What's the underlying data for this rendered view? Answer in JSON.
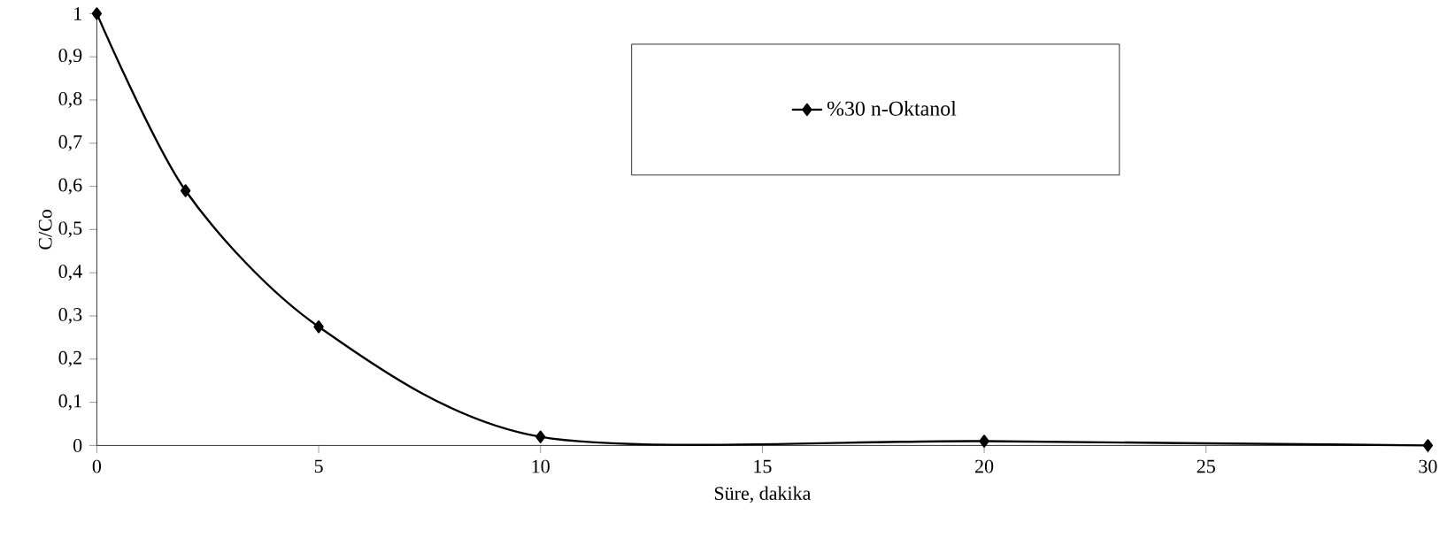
{
  "chart_data": {
    "type": "line",
    "xlabel": "Süre, dakika",
    "ylabel": "C/Co",
    "series": [
      {
        "name": "%30 n-Oktanol",
        "color": "#000000",
        "x": [
          0,
          2,
          5,
          10,
          20,
          30
        ],
        "values": [
          1,
          0.59,
          0.275,
          0.02,
          0.01,
          0
        ]
      }
    ],
    "xlim": [
      0,
      30
    ],
    "xticks": [
      0,
      5,
      10,
      15,
      20,
      25,
      30
    ],
    "ylim": [
      0,
      1
    ],
    "yticks": [
      0,
      {
        "value": 0.1,
        "label": "0,1"
      },
      {
        "value": 0.2,
        "label": "0,2"
      },
      {
        "value": 0.3,
        "label": "0,3"
      },
      {
        "value": 0.4,
        "label": "0,4"
      },
      {
        "value": 0.5,
        "label": "0,5"
      },
      {
        "value": 0.6,
        "label": "0,6"
      },
      {
        "value": 0.7,
        "label": "0,7"
      },
      {
        "value": 0.8,
        "label": "0,8"
      },
      {
        "value": 0.9,
        "label": "0,9"
      },
      1
    ],
    "marker": "diamond",
    "line_style": "solid",
    "legend": "top",
    "grid": false
  }
}
